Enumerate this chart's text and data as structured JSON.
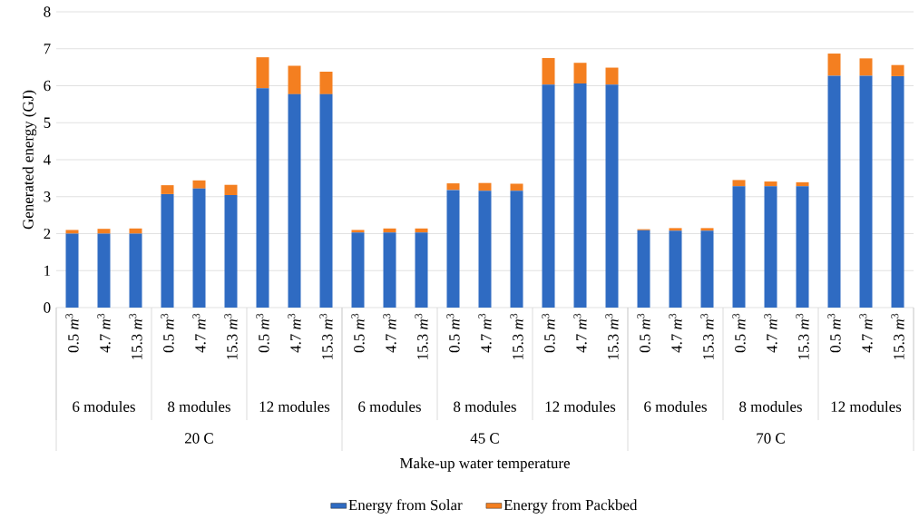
{
  "chart_data": {
    "type": "bar",
    "stacked": true,
    "ylabel": "Generated energy  (GJ)",
    "categories": [
      "0.5 *m*$^{3}$",
      "4.7 *m*$^{3}$",
      "15.3 *m*$^{3}$",
      "0.5 *m*$^{3}$",
      "4.7 *m*$^{3}$",
      "15.3 *m*$^{3}$",
      "0.5 *m*$^{3}$",
      "4.7 *m*$^{3}$",
      "15.3 *m*$^{3}$",
      "0.5 *m*$^{3}$",
      "4.7 *m*$^{3}$",
      "15.3 *m*$^{3}$",
      "0.5 *m*$^{3}$",
      "4.7 *m*$^{3}$",
      "15.3 *m*$^{3}$",
      "0.5 *m*$^{3}$",
      "4.7 *m*$^{3}$",
      "15.3 *m*$^{3}$",
      "0.5 *m*$^{3}$",
      "4.7 *m*$^{3}$",
      "15.3 *m*$^{3}$",
      "0.5 *m*$^{3}$",
      "4.7 *m*$^{3}$",
      "15.3 *m*$^{3}$",
      "0.5 *m*$^{3}$",
      "4.7 *m*$^{3}$",
      "15.3 *m*$^{3}$"
    ],
    "series": [
      {
        "name": "Energy from Solar",
        "color": "#2f6bc2",
        "values": [
          2.0,
          2.0,
          2.0,
          3.07,
          3.22,
          3.04,
          5.93,
          5.77,
          5.77,
          2.03,
          2.03,
          2.03,
          3.18,
          3.16,
          3.16,
          6.03,
          6.06,
          6.03,
          2.09,
          2.08,
          2.08,
          3.28,
          3.28,
          3.28,
          6.27,
          6.27,
          6.26
        ]
      },
      {
        "name": "Energy from Packbed",
        "color": "#f47f20",
        "values": [
          0.1,
          0.13,
          0.14,
          0.24,
          0.22,
          0.28,
          0.84,
          0.77,
          0.61,
          0.07,
          0.11,
          0.11,
          0.18,
          0.21,
          0.19,
          0.72,
          0.56,
          0.46,
          0.03,
          0.07,
          0.07,
          0.17,
          0.13,
          0.11,
          0.6,
          0.47,
          0.3
        ]
      }
    ],
    "annotations": [
      "6 modules",
      "8 modules",
      "12 modules",
      "6 modules",
      "8 modules",
      "12 modules",
      "6 modules",
      "8 modules",
      "12 modules",
      "20 C",
      "45 C",
      "70 C",
      "Make-up water temperature"
    ],
    "ylim": [
      0,
      8
    ],
    "yticks": [
      0,
      1,
      2,
      3,
      4,
      5,
      6,
      7,
      8
    ],
    "grid": "y",
    "legend": "bottom"
  }
}
